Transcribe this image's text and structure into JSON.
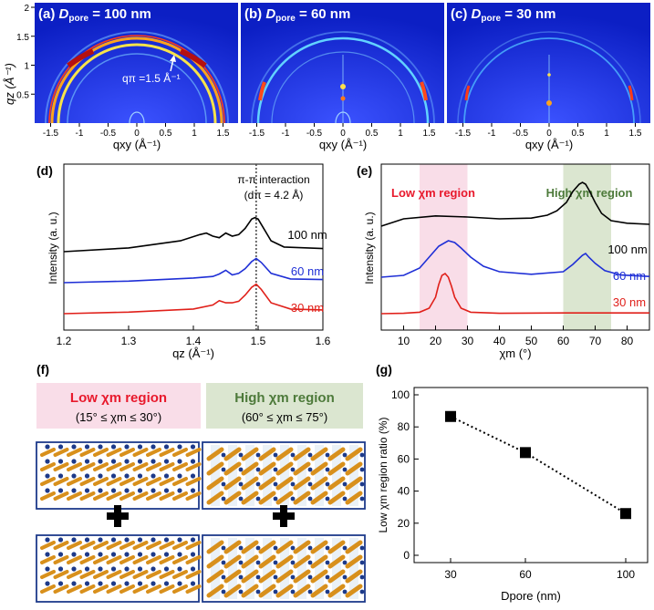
{
  "panels_top": [
    {
      "label": "(a)",
      "dlabel": "D",
      "dsub": "pore",
      "dval": " = 100 nm",
      "annot": "qπ =1.5 Å⁻¹"
    },
    {
      "label": "(b)",
      "dlabel": "D",
      "dsub": "pore",
      "dval": " = 60 nm"
    },
    {
      "label": "(c)",
      "dlabel": "D",
      "dsub": "pore",
      "dval": " = 30 nm"
    }
  ],
  "top_axes": {
    "xlabel": "qxy (Å⁻¹)",
    "ylabel": "qz (Å⁻¹)",
    "xticks": [
      "-1.5",
      "-1",
      "-0.5",
      "0",
      "0.5",
      "1",
      "1.5"
    ],
    "yticks": [
      "0.5",
      "1",
      "1.5",
      "2"
    ]
  },
  "chart_data": [
    {
      "type": "line",
      "panel": "(d)",
      "xlabel": "qz (Å⁻¹)",
      "ylabel": "Intensity (a. u.)",
      "xlim": [
        1.2,
        1.6
      ],
      "xticks": [
        "1.2",
        "1.3",
        "1.4",
        "1.5",
        "1.6"
      ],
      "annotation": [
        "π-π interaction",
        "(dπ = 4.2 Å)"
      ],
      "marker_x": 1.497,
      "series": [
        {
          "name": "100 nm",
          "color": "#000000",
          "offset": 2.0,
          "x": [
            1.2,
            1.3,
            1.38,
            1.41,
            1.42,
            1.43,
            1.44,
            1.45,
            1.46,
            1.47,
            1.48,
            1.49,
            1.495,
            1.5,
            1.51,
            1.52,
            1.54,
            1.6
          ],
          "y": [
            0,
            0.12,
            0.35,
            0.55,
            0.6,
            0.5,
            0.45,
            0.6,
            0.5,
            0.55,
            0.75,
            1.05,
            1.1,
            1.05,
            0.7,
            0.35,
            0.15,
            0.1
          ]
        },
        {
          "name": "60 nm",
          "color": "#1f2fd6",
          "offset": 1.0,
          "x": [
            1.2,
            1.3,
            1.4,
            1.43,
            1.44,
            1.45,
            1.46,
            1.47,
            1.48,
            1.49,
            1.497,
            1.505,
            1.52,
            1.55,
            1.6
          ],
          "y": [
            0,
            0.05,
            0.15,
            0.2,
            0.28,
            0.4,
            0.25,
            0.3,
            0.45,
            0.68,
            0.78,
            0.65,
            0.3,
            0.12,
            0.1
          ]
        },
        {
          "name": "30 nm",
          "color": "#e0201a",
          "offset": 0.0,
          "x": [
            1.2,
            1.3,
            1.4,
            1.43,
            1.44,
            1.45,
            1.46,
            1.47,
            1.48,
            1.49,
            1.497,
            1.505,
            1.52,
            1.55,
            1.6
          ],
          "y": [
            0,
            0.05,
            0.15,
            0.28,
            0.42,
            0.35,
            0.35,
            0.4,
            0.6,
            0.85,
            0.95,
            0.78,
            0.35,
            0.15,
            0.12
          ]
        }
      ]
    },
    {
      "type": "line",
      "panel": "(e)",
      "xlabel": "χm (°)",
      "ylabel": "Intensity (a. u.)",
      "xlim": [
        3,
        87
      ],
      "xticks": [
        "10",
        "20",
        "30",
        "40",
        "50",
        "60",
        "70",
        "80"
      ],
      "regions": [
        {
          "label": "Low χm region",
          "from": 15,
          "to": 30,
          "color": "#f9dde8",
          "text_color": "#e8192c"
        },
        {
          "label": "High χm region",
          "from": 60,
          "to": 75,
          "color": "#dbe6d0",
          "text_color": "#4d7a3a"
        }
      ],
      "series": [
        {
          "name": "100 nm",
          "color": "#000000",
          "offset": 2.4,
          "x": [
            3,
            10,
            20,
            30,
            40,
            50,
            55,
            58,
            61,
            63,
            65,
            66,
            67,
            68,
            70,
            72,
            75,
            80,
            87
          ],
          "y": [
            0,
            0.2,
            0.28,
            0.25,
            0.2,
            0.22,
            0.3,
            0.42,
            0.65,
            0.95,
            1.15,
            1.2,
            1.15,
            1.0,
            0.65,
            0.35,
            0.15,
            0.08,
            0.05
          ]
        },
        {
          "name": "60 nm",
          "color": "#1f2fd6",
          "offset": 1.0,
          "x": [
            3,
            10,
            15,
            18,
            21,
            24,
            26,
            28,
            31,
            35,
            40,
            50,
            60,
            63,
            66,
            67,
            68,
            70,
            73,
            78,
            87
          ],
          "y": [
            0,
            0.05,
            0.25,
            0.55,
            0.85,
            1.0,
            0.95,
            0.8,
            0.55,
            0.3,
            0.15,
            0.08,
            0.15,
            0.35,
            0.6,
            0.65,
            0.55,
            0.38,
            0.18,
            0.06,
            0.02
          ]
        },
        {
          "name": "30 nm",
          "color": "#e0201a",
          "offset": 0.0,
          "x": [
            3,
            10,
            15,
            18,
            20,
            21,
            22,
            23,
            24,
            25,
            26,
            28,
            31,
            40,
            60,
            87
          ],
          "y": [
            0,
            0.01,
            0.04,
            0.15,
            0.45,
            0.8,
            1.05,
            1.1,
            1.0,
            0.75,
            0.45,
            0.15,
            0.04,
            0.01,
            0.02,
            0.02
          ]
        }
      ]
    },
    {
      "type": "scatter",
      "panel": "(g)",
      "xlabel": "Dpore (nm)",
      "ylabel": "Low χm region ratio (%)",
      "xticks": [
        "30",
        "60",
        "100"
      ],
      "yticks": [
        "0",
        "20",
        "40",
        "60",
        "80",
        "100"
      ],
      "ylim": [
        0,
        100
      ],
      "x": [
        30,
        60,
        100
      ],
      "y": [
        86.5,
        64,
        26
      ]
    }
  ],
  "panel_f": {
    "label": "(f)",
    "low": {
      "title": "Low χm region",
      "range": "(15° ≤ χm ≤ 30°)"
    },
    "high": {
      "title": "High χm region",
      "range": "(60° ≤ χm ≤ 75°)"
    }
  },
  "colors": {
    "gold": "#d8901c",
    "navy": "#1d3a8a",
    "detector": "#2334c9"
  }
}
